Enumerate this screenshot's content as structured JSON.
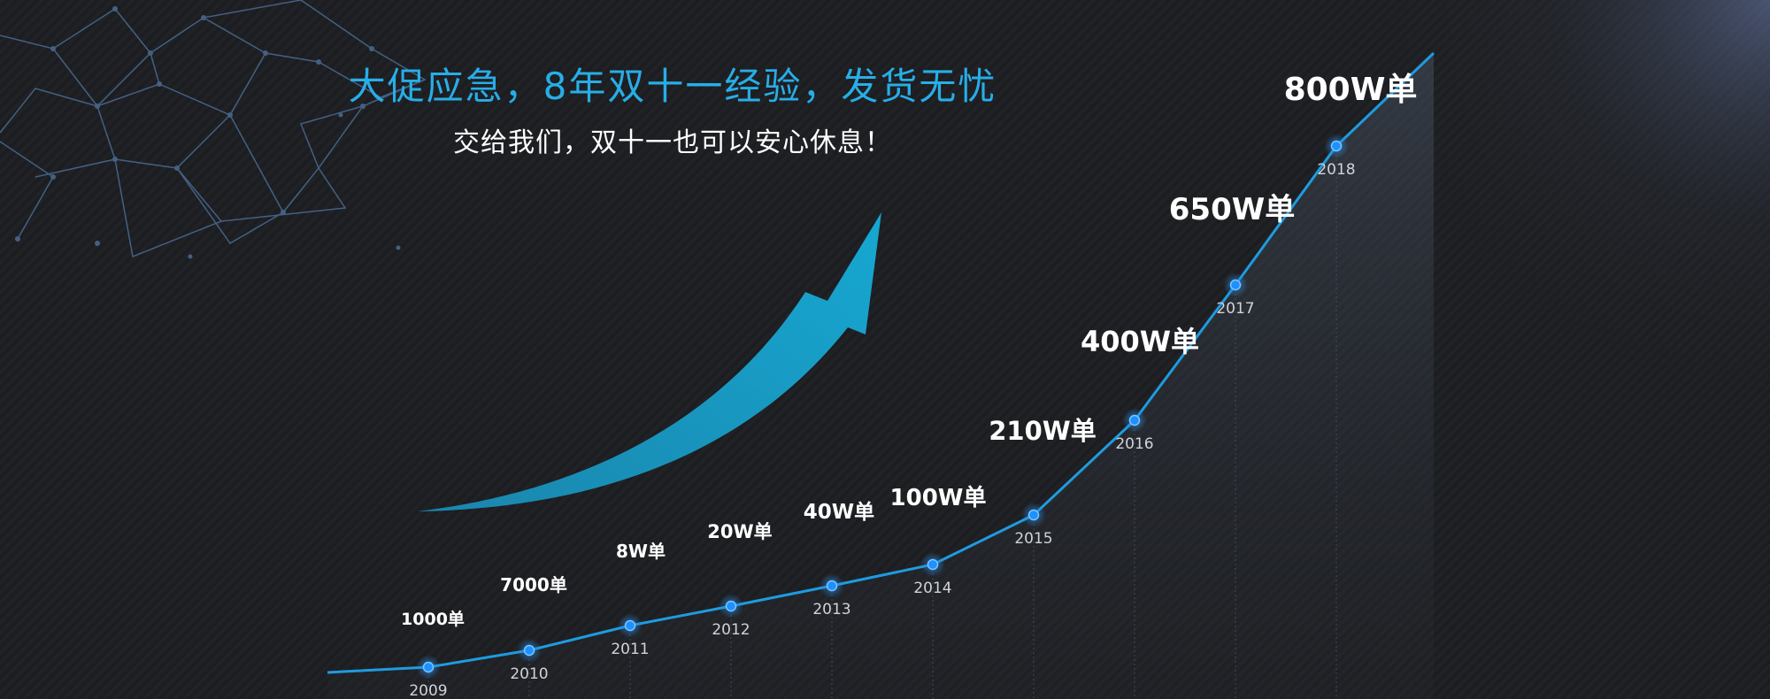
{
  "header": {
    "title": "大促应急，8年双十一经验，发货无忧",
    "subtitle": "交给我们，双十一也可以安心休息！"
  },
  "colors": {
    "accent": "#27aee8",
    "line": "#1e9be0",
    "point": "#1e90ff",
    "background": "#1c1d20",
    "text": "#ffffff"
  },
  "icons": [
    "growth-arrow-icon",
    "network-mesh-decoration"
  ],
  "chart_data": {
    "type": "line",
    "title": "",
    "xlabel": "",
    "ylabel": "",
    "grid": false,
    "legend": "none",
    "x": [
      "2009",
      "2010",
      "2011",
      "2012",
      "2013",
      "2014",
      "2015",
      "2016",
      "2017",
      "2018"
    ],
    "series": [
      {
        "values": [
          1000,
          7000,
          80000,
          200000,
          400000,
          1000000,
          2100000,
          4000000,
          6500000,
          8000000
        ],
        "labels": [
          "1000单",
          "7000单",
          "8W单",
          "20W单",
          "40W单",
          "100W单",
          "210W单",
          "400W单",
          "650W单",
          "800W单"
        ]
      }
    ]
  }
}
